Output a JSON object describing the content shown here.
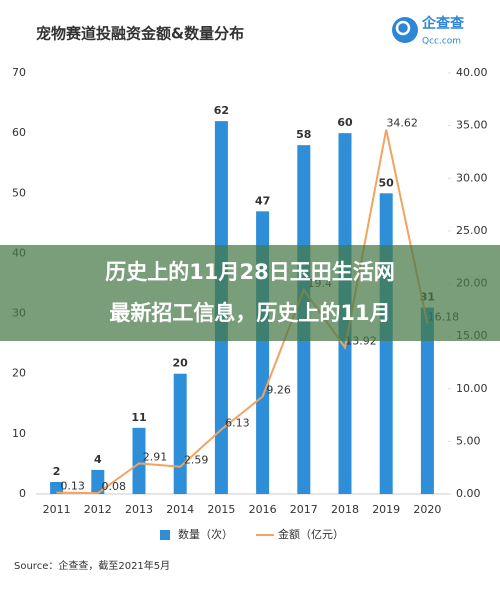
{
  "chart_data": {
    "type": "bar-line",
    "title": "宠物赛道投融资金额&数量分布",
    "categories": [
      "2011",
      "2012",
      "2013",
      "2014",
      "2015",
      "2016",
      "2017",
      "2018",
      "2019",
      "2020"
    ],
    "series": [
      {
        "name": "数量（次）",
        "type": "bar",
        "color": "#2e8fd8",
        "values": [
          2,
          4,
          11,
          20,
          62,
          47,
          58,
          60,
          50,
          31
        ]
      },
      {
        "name": "金额（亿元）",
        "type": "line",
        "axis": "y2",
        "color": "#f2a35e",
        "values": [
          0.13,
          0.08,
          2.91,
          2.59,
          6.13,
          9.26,
          19.4,
          13.92,
          34.62,
          16.18
        ]
      }
    ],
    "ylim": [
      0,
      70
    ],
    "yticks": [
      0,
      10,
      20,
      30,
      40,
      50,
      60,
      70
    ],
    "y2lim": [
      0,
      40
    ],
    "y2ticks": [
      {
        "value": 0,
        "label": "0.00"
      },
      {
        "value": 5,
        "label": "5.00"
      },
      {
        "value": 10,
        "label": "10.00"
      },
      {
        "value": 15,
        "label": "15.00"
      },
      {
        "value": 20,
        "label": "20.00"
      },
      {
        "value": 25,
        "label": "25.00"
      },
      {
        "value": 30,
        "label": "30.00"
      },
      {
        "value": 35,
        "label": "35.00"
      },
      {
        "value": 40,
        "label": "40.00"
      }
    ],
    "grid": false,
    "legend": "bottom",
    "source": "Source：企查查，截至2021年5月"
  },
  "logo": {
    "name": "企查查",
    "domain": "Qcc.com"
  },
  "overlay": {
    "lines": [
      "历史上的11月28日玉田生活网",
      "最新招工信息，历史上的11月"
    ]
  }
}
